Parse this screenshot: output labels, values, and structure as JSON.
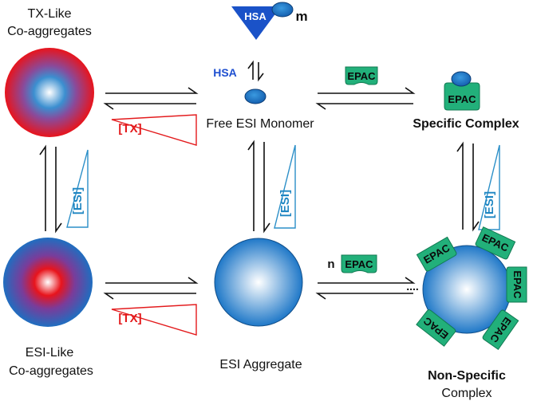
{
  "labels": {
    "tx_like_line1": "TX-Like",
    "tx_like_line2": "Co-aggregates",
    "esi_like_line1": "ESI-Like",
    "esi_like_line2": "Co-aggregates",
    "free_monomer": "Free ESI Monomer",
    "esi_aggregate": "ESI Aggregate",
    "specific_complex": "Specific Complex",
    "nonspecific_line1": "Non-Specific",
    "nonspecific_line2": "Complex",
    "hsa_blue": "HSA",
    "hsa_triangle": "HSA",
    "m_suffix": "m",
    "epac": "EPAC",
    "n_prefix": "n",
    "dots": "....",
    "tx_bracket": "[TX]",
    "esi_bracket": "[ESI]"
  },
  "colors": {
    "red": "#e31a1c",
    "blue_deep": "#1f6ec0",
    "blue_light": "#ffffff",
    "triangle_blue": "#1a52c8",
    "hsa_text_blue": "#1e4fd0",
    "epac_green": "#22b07a",
    "esi_wedge_blue": "#2b8fc8",
    "esi_text_blue": "#1f86c2"
  }
}
